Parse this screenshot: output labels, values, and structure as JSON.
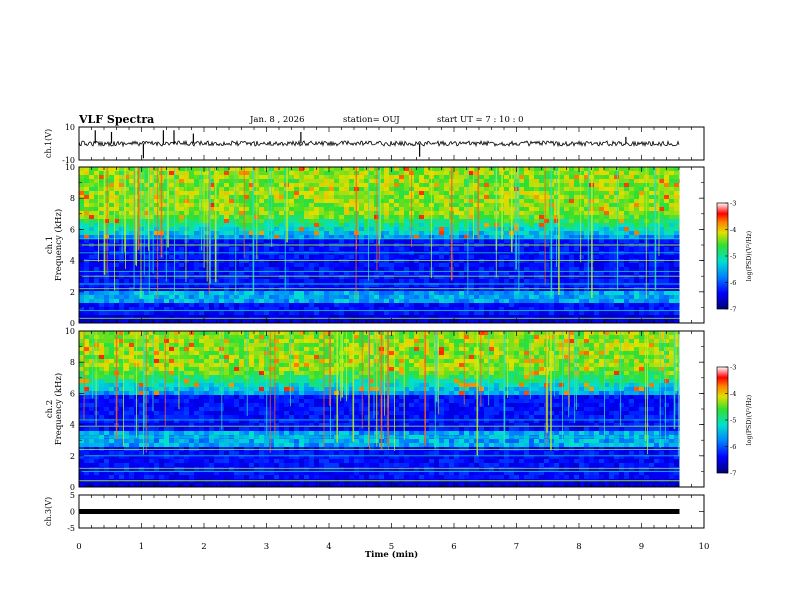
{
  "header": {
    "title": "VLF Spectra",
    "date": "Jan. 8 , 2026",
    "station": "station= OUJ",
    "start_ut": "start  UT =  7 : 10 : 0"
  },
  "chart_data": {
    "type": "heatmap",
    "x_axis": {
      "label": "Time (min)",
      "range": [
        0,
        10
      ],
      "ticks": [
        "0",
        "1",
        "2",
        "3",
        "4",
        "5",
        "6",
        "7",
        "8",
        "9",
        "10"
      ],
      "data_extent_min": 9.8
    },
    "panels": [
      {
        "id": "ch1_waveform",
        "type": "line",
        "ylabel": "ch.1(V)",
        "ylim": [
          -10,
          10
        ],
        "yticks": [
          "10",
          "-10"
        ],
        "baseline": 0,
        "spikes": [
          {
            "t": 0.26,
            "v": 8
          },
          {
            "t": 0.52,
            "v": 7
          },
          {
            "t": 1.03,
            "v": -9
          },
          {
            "t": 1.35,
            "v": 8
          },
          {
            "t": 1.52,
            "v": 8
          },
          {
            "t": 1.83,
            "v": 6
          },
          {
            "t": 3.55,
            "v": 7
          },
          {
            "t": 5.45,
            "v": -8
          },
          {
            "t": 8.75,
            "v": 4
          }
        ]
      },
      {
        "id": "ch1_spectrogram",
        "type": "heatmap",
        "ylabel": "ch.1 Frequency (kHz)",
        "ylim": [
          0,
          10
        ],
        "yticks": [
          "0",
          "2",
          "4",
          "6",
          "8",
          "10"
        ],
        "colorbar": {
          "label": "log(PSD)(V²/Hz)",
          "range": [
            -7,
            -3
          ],
          "ticks": [
            "-3",
            "-4",
            "-5",
            "-6",
            "-7"
          ]
        },
        "hiss_band_khz": [
          1.3,
          2.0
        ],
        "sferic_band_khz": [
          5.5,
          10
        ],
        "bright_lines_khz": [
          0.3,
          0.8,
          2.2,
          2.5,
          3.0,
          3.3,
          4.0,
          4.5,
          5.0,
          5.4
        ]
      },
      {
        "id": "ch2_spectrogram",
        "type": "heatmap",
        "ylabel": "ch.2 Frequency (kHz)",
        "ylim": [
          0,
          10
        ],
        "yticks": [
          "0",
          "2",
          "4",
          "6",
          "8",
          "10"
        ],
        "colorbar": {
          "label": "log(PSD)(V²/Hz)",
          "range": [
            -7,
            -3
          ],
          "ticks": [
            "-3",
            "-4",
            "-5",
            "-6",
            "-7"
          ]
        },
        "hiss_band_khz": [
          2.6,
          3.6
        ],
        "sferic_band_khz": [
          6.0,
          10
        ],
        "bright_lines_khz": [
          0.4,
          1.0,
          1.2,
          2.0,
          2.4,
          3.2,
          3.9,
          4.3
        ]
      },
      {
        "id": "ch3_waveform",
        "type": "line",
        "ylabel": "ch.3(V)",
        "ylim": [
          -5,
          5
        ],
        "yticks": [
          "5",
          "0",
          "-5"
        ],
        "baseline": 0
      }
    ]
  }
}
